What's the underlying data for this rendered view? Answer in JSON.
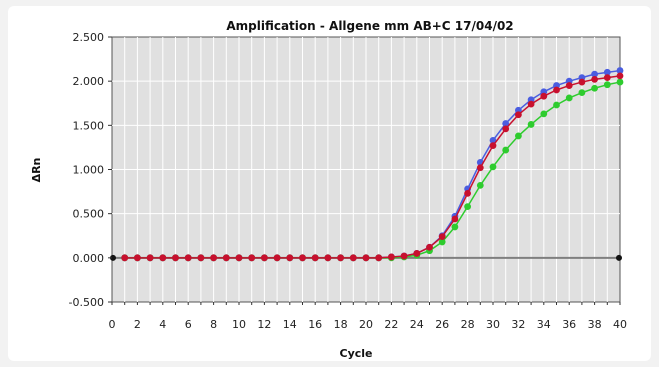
{
  "chart_data": {
    "type": "scatter",
    "title": "Amplification - Allgene mm AB+C 17/04/02",
    "xlabel": "Cycle",
    "ylabel": "ΔRn",
    "xlim": [
      0,
      40
    ],
    "ylim": [
      -0.5,
      2.5
    ],
    "x_ticks": [
      0,
      2,
      4,
      6,
      8,
      10,
      12,
      14,
      16,
      18,
      20,
      22,
      24,
      26,
      28,
      30,
      32,
      34,
      36,
      38,
      40
    ],
    "y_ticks": [
      {
        "value": -0.5,
        "label": "-0.500"
      },
      {
        "value": 0.0,
        "label": "0.000"
      },
      {
        "value": 0.5,
        "label": "0.500"
      },
      {
        "value": 1.0,
        "label": "1.000"
      },
      {
        "value": 1.5,
        "label": "1.500"
      },
      {
        "value": 2.0,
        "label": "2.000"
      },
      {
        "value": 2.5,
        "label": "2.500"
      }
    ],
    "grid": true,
    "threshold": 0.0,
    "x": [
      1,
      2,
      3,
      4,
      5,
      6,
      7,
      8,
      9,
      10,
      11,
      12,
      13,
      14,
      15,
      16,
      17,
      18,
      19,
      20,
      21,
      22,
      23,
      24,
      25,
      26,
      27,
      28,
      29,
      30,
      31,
      32,
      33,
      34,
      35,
      36,
      37,
      38,
      39,
      40
    ],
    "series": [
      {
        "color": "#4a5de0",
        "values": [
          0,
          0,
          0,
          0,
          0,
          0,
          0,
          0,
          0,
          0,
          0,
          0,
          0,
          0,
          0,
          0,
          0,
          0,
          0,
          0,
          0,
          0.01,
          0.02,
          0.05,
          0.12,
          0.25,
          0.47,
          0.78,
          1.08,
          1.33,
          1.52,
          1.67,
          1.79,
          1.88,
          1.95,
          2.0,
          2.04,
          2.08,
          2.1,
          2.12
        ]
      },
      {
        "color": "#2ecc2e",
        "values": [
          0,
          0,
          0,
          0,
          0,
          0,
          0,
          0,
          0,
          0,
          0,
          0,
          0,
          0,
          0,
          0,
          0,
          0,
          0,
          0,
          0,
          0,
          0.01,
          0.03,
          0.08,
          0.18,
          0.35,
          0.58,
          0.82,
          1.03,
          1.22,
          1.38,
          1.51,
          1.63,
          1.73,
          1.81,
          1.87,
          1.92,
          1.96,
          1.99
        ]
      },
      {
        "color": "#c8102e",
        "values": [
          0,
          0,
          0,
          0,
          0,
          0,
          0,
          0,
          0,
          0,
          0,
          0,
          0,
          0,
          0,
          0,
          0,
          0,
          0,
          0,
          0,
          0.01,
          0.02,
          0.05,
          0.12,
          0.24,
          0.44,
          0.73,
          1.02,
          1.27,
          1.46,
          1.62,
          1.74,
          1.83,
          1.9,
          1.95,
          1.99,
          2.02,
          2.04,
          2.06
        ]
      }
    ]
  },
  "colors": {
    "plot_background": "#e0e0e0",
    "grid": "#ffffff",
    "threshold": "#7f7f7f"
  }
}
